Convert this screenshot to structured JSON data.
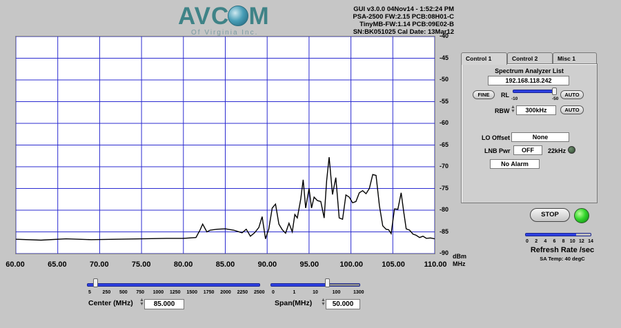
{
  "logo": {
    "word": "AVCOM",
    "sub": "Of Virginia Inc."
  },
  "info": {
    "line1": "GUI v3.0.0  04Nov14 - 1:52:24 PM",
    "line2": "PSA-2500 FW:2.15 PCB:08H01-C",
    "line3": "TinyMB-FW:1.14  PCB:09E02-B",
    "line4": "SN:BK051025  Cal Date: 13Mar12"
  },
  "plot": {
    "x_ticks": [
      "60.00",
      "65.00",
      "70.00",
      "75.00",
      "80.00",
      "85.00",
      "90.00",
      "95.00",
      "100.00",
      "105.00",
      "110.00"
    ],
    "y_ticks": [
      "-40",
      "-45",
      "-50",
      "-55",
      "-60",
      "-65",
      "-70",
      "-75",
      "-80",
      "-85",
      "-90"
    ],
    "y_unit": "dBm",
    "x_unit": "MHz"
  },
  "chart_data": {
    "type": "line",
    "xlim": [
      60,
      110
    ],
    "ylim": [
      -90,
      -40
    ],
    "grid": true,
    "series": [
      {
        "x": [
          60,
          63,
          66,
          69,
          72,
          75,
          78,
          80,
          81.5,
          82,
          82.3,
          82.8,
          83.2,
          84,
          85,
          86,
          87,
          87.5,
          88,
          88.5,
          89,
          89.4,
          89.8,
          90.2,
          90.6,
          91,
          91.4,
          91.8,
          92.2,
          92.6,
          93,
          93.3,
          93.6,
          94,
          94.3,
          94.6,
          95,
          95.3,
          95.6,
          96,
          96.4,
          96.8,
          97.1,
          97.4,
          97.8,
          98.2,
          98.6,
          99,
          99.4,
          99.8,
          100.2,
          100.6,
          101,
          101.4,
          101.8,
          102.2,
          102.6,
          103,
          103.4,
          103.8,
          104.2,
          104.5,
          104.8,
          105.2,
          105.6,
          106,
          106.3,
          106.6,
          107,
          107.4,
          107.8,
          108.2,
          108.6,
          109,
          109.5,
          110
        ],
        "y": [
          -86.7,
          -86.9,
          -86.6,
          -86.8,
          -86.7,
          -86.6,
          -86.5,
          -86.5,
          -86.3,
          -84.5,
          -83.2,
          -85.0,
          -84.6,
          -84.4,
          -84.3,
          -84.6,
          -85.2,
          -84.4,
          -86.0,
          -85.2,
          -84.0,
          -81.5,
          -86.6,
          -84.3,
          -79.5,
          -78.6,
          -83.2,
          -84.5,
          -85.3,
          -83.0,
          -85.0,
          -81.0,
          -81.8,
          -77.5,
          -73.0,
          -79.5,
          -75.0,
          -79.5,
          -77.0,
          -77.8,
          -78.0,
          -81.8,
          -73.2,
          -67.8,
          -76.4,
          -72.5,
          -81.8,
          -82.1,
          -76.5,
          -77.0,
          -78.3,
          -78.0,
          -76.0,
          -75.5,
          -76.2,
          -75.0,
          -71.8,
          -72.0,
          -79.0,
          -83.6,
          -84.4,
          -84.5,
          -85.4,
          -79.7,
          -79.8,
          -76.0,
          -80.4,
          -84.3,
          -84.6,
          -85.5,
          -85.8,
          -86.3,
          -86.0,
          -86.5,
          -86.4,
          -86.6
        ]
      }
    ]
  },
  "tabs": [
    "Control 1",
    "Control 2",
    "Misc 1"
  ],
  "control1": {
    "title": "Spectrum Analyzer List",
    "ip": "192.168.118.242",
    "fine_label": "FINE",
    "rl_label": "RL",
    "rl_min": "-10",
    "rl_max": "-50",
    "rl_level": 0.95,
    "auto_label": "AUTO",
    "rbw_label": "RBW",
    "rbw_value": "300kHz",
    "lo_offset_label": "LO Offset",
    "lo_offset_value": "None",
    "lnb_label": "LNB Pwr",
    "lnb_value": "OFF",
    "khz_label": "22kHz",
    "alarm_value": "No Alarm"
  },
  "stop_label": "STOP",
  "refresh": {
    "ticks": [
      "0",
      "2",
      "4",
      "6",
      "8",
      "10",
      "12",
      "14"
    ],
    "title": "Refresh Rate /sec",
    "temp": "SA Temp: 40 degC",
    "level": 0.78
  },
  "center": {
    "label": "Center (MHz)",
    "value": "85.000",
    "ticks": [
      "5",
      "250",
      "500",
      "750",
      "1000",
      "1250",
      "1500",
      "1750",
      "2000",
      "2250",
      "2500"
    ],
    "level": 0.02
  },
  "span": {
    "label": "Span(MHz)",
    "value": "50.000",
    "ticks": [
      "0",
      "1",
      "10",
      "100",
      "1300"
    ],
    "level": 0.64
  },
  "colors": {
    "trace": "#000000",
    "grid": "#2b2bd0",
    "slider": "#2d3fe0",
    "led_green": "#33d62c",
    "led_off": "#3c5a3c"
  }
}
